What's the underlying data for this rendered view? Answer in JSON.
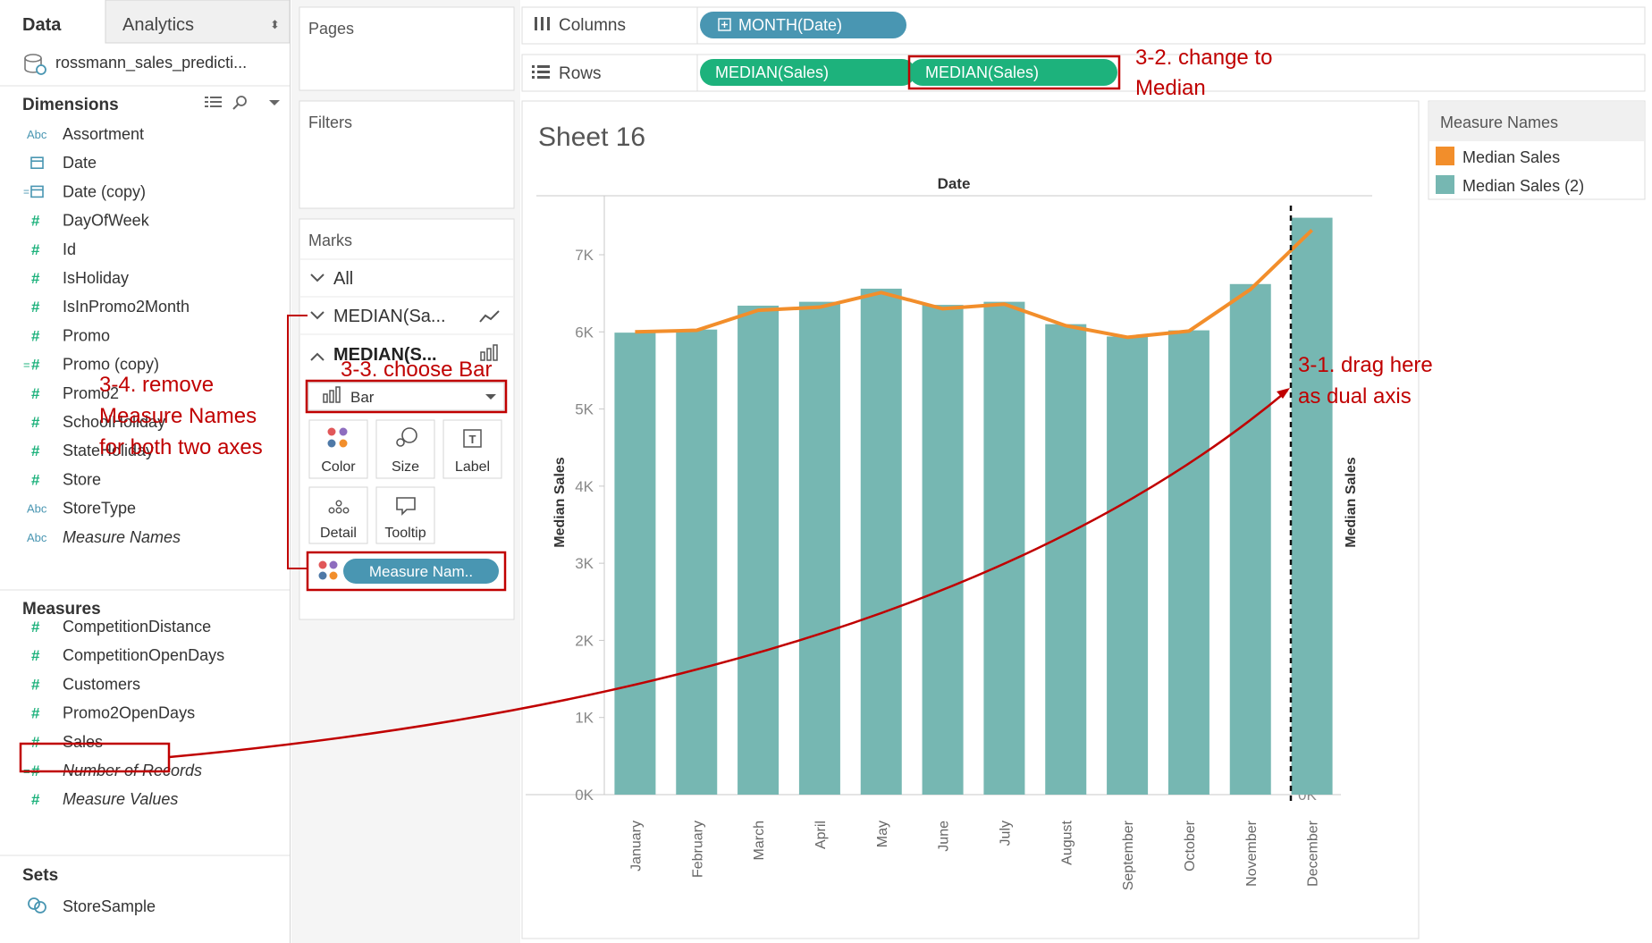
{
  "left_panel": {
    "tabs": [
      {
        "label": "Data",
        "active": true
      },
      {
        "label": "Analytics",
        "active": false
      }
    ],
    "datasource": "rossmann_sales_predicti...",
    "dimensions_header": "Dimensions",
    "dimensions": [
      {
        "type": "Abc",
        "label": "Assortment",
        "italic": false
      },
      {
        "type": "date",
        "label": "Date",
        "italic": false
      },
      {
        "type": "date-calc",
        "label": "Date (copy)",
        "italic": false
      },
      {
        "type": "#",
        "label": "DayOfWeek",
        "italic": false
      },
      {
        "type": "#",
        "label": "Id",
        "italic": false
      },
      {
        "type": "#",
        "label": "IsHoliday",
        "italic": false
      },
      {
        "type": "#",
        "label": "IsInPromo2Month",
        "italic": false
      },
      {
        "type": "#",
        "label": "Promo",
        "italic": false
      },
      {
        "type": "=#",
        "label": "Promo (copy)",
        "italic": false
      },
      {
        "type": "#",
        "label": "Promo2",
        "italic": false
      },
      {
        "type": "#",
        "label": "SchoolHoliday",
        "italic": false
      },
      {
        "type": "#",
        "label": "StateHoliday",
        "italic": false
      },
      {
        "type": "#",
        "label": "Store",
        "italic": false
      },
      {
        "type": "Abc",
        "label": "StoreType",
        "italic": false
      },
      {
        "type": "Abc",
        "label": "Measure Names",
        "italic": true
      }
    ],
    "measures_header": "Measures",
    "measures": [
      {
        "type": "#",
        "label": "CompetitionDistance",
        "italic": false
      },
      {
        "type": "#",
        "label": "CompetitionOpenDays",
        "italic": false
      },
      {
        "type": "#",
        "label": "Customers",
        "italic": false
      },
      {
        "type": "#",
        "label": "Promo2OpenDays",
        "italic": false
      },
      {
        "type": "#",
        "label": "Sales",
        "italic": false
      },
      {
        "type": "=#",
        "label": "Number of Records",
        "italic": true
      },
      {
        "type": "#",
        "label": "Measure Values",
        "italic": true
      }
    ],
    "sets_header": "Sets",
    "sets": [
      {
        "type": "set",
        "label": "StoreSample"
      }
    ]
  },
  "cards": {
    "pages": "Pages",
    "filters": "Filters",
    "marks": {
      "title": "Marks",
      "all": "All",
      "row1": "MEDIAN(Sa...",
      "row2": "MEDIAN(S...",
      "mark_type": "Bar",
      "buttons": [
        "Color",
        "Size",
        "Label",
        "Detail",
        "Tooltip"
      ],
      "color_pill": "Measure Nam.."
    }
  },
  "shelves": {
    "columns_label": "Columns",
    "rows_label": "Rows",
    "columns_pill": "MONTH(Date)",
    "rows_pills": [
      "MEDIAN(Sales)",
      "MEDIAN(Sales)"
    ]
  },
  "sheet": {
    "title": "Sheet 16",
    "header": "Date"
  },
  "legend": {
    "title": "Measure Names",
    "items": [
      {
        "label": "Median Sales",
        "color": "#f28e2b"
      },
      {
        "label": "Median Sales (2)",
        "color": "#76b7b2"
      }
    ]
  },
  "annotations": {
    "a32": [
      "3-2. change to",
      "Median"
    ],
    "a33": "3-3. choose Bar",
    "a34": [
      "3-4. remove",
      "Measure Names",
      "for both two axes"
    ],
    "a31": [
      "3-1. drag here",
      "as dual axis"
    ]
  },
  "chart_data": {
    "type": "bar",
    "categories": [
      "January",
      "February",
      "March",
      "April",
      "May",
      "June",
      "July",
      "August",
      "September",
      "October",
      "November",
      "December"
    ],
    "series": [
      {
        "name": "Median Sales",
        "mark": "line",
        "values": [
          6000,
          6020,
          6280,
          6320,
          6510,
          6300,
          6360,
          6080,
          5930,
          6010,
          6550,
          7320
        ]
      },
      {
        "name": "Median Sales (2)",
        "mark": "bar",
        "values": [
          5990,
          6030,
          6340,
          6390,
          6560,
          6350,
          6390,
          6100,
          5940,
          6020,
          6620,
          7480
        ]
      }
    ],
    "ylabel": "Median Sales",
    "y2label": "Median Sales",
    "ylim": [
      0,
      7700
    ],
    "yticks": [
      0,
      1000,
      2000,
      3000,
      4000,
      5000,
      6000,
      7000
    ],
    "ytick_labels": [
      "0K",
      "1K",
      "2K",
      "3K",
      "4K",
      "5K",
      "6K",
      "7K"
    ],
    "colors": {
      "line": "#f28e2b",
      "bar": "#76b7b2"
    }
  },
  "colors": {
    "pill_green": "#1db27c",
    "pill_blue": "#4996b2",
    "annotation_red": "#c00000"
  }
}
